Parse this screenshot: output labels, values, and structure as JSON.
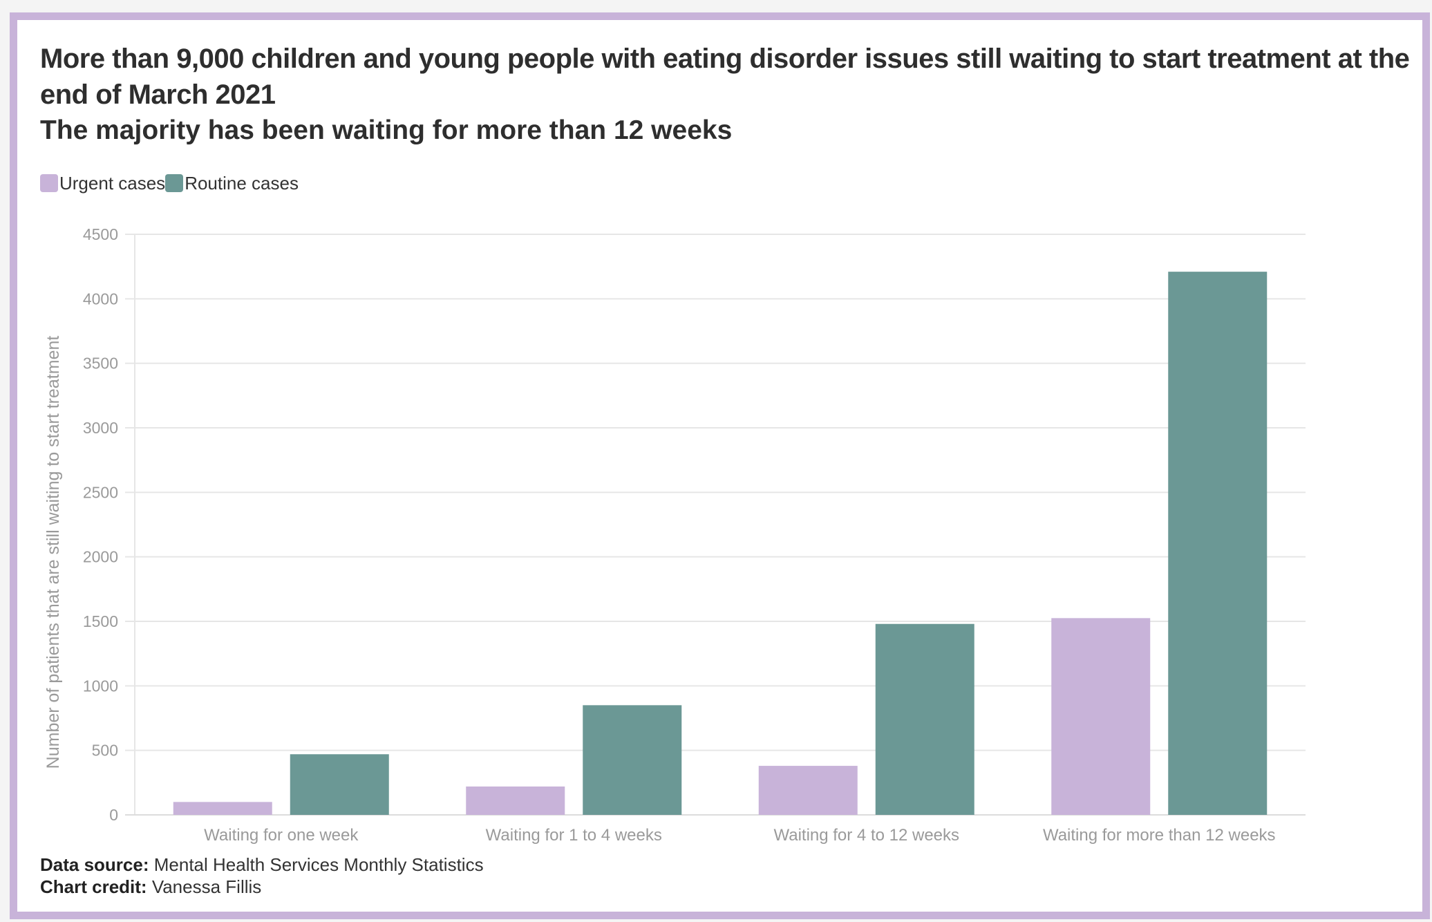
{
  "chart_data": {
    "type": "bar",
    "title": "More than 9,000 children and young people with eating disorder issues still waiting to start treatment at the end of March 2021",
    "subtitle": "The majority has been waiting for more than 12 weeks",
    "ylabel": "Number of patients that are still waiting to start treatment",
    "xlabel": "",
    "categories": [
      "Waiting for one week",
      "Waiting for 1 to 4 weeks",
      "Waiting for 4 to 12 weeks",
      "Waiting for more than 12 weeks"
    ],
    "series": [
      {
        "name": "Urgent cases",
        "values": [
          100,
          220,
          380,
          1525
        ],
        "color": "#c8b3d9"
      },
      {
        "name": "Routine cases",
        "values": [
          470,
          850,
          1480,
          4210
        ],
        "color": "#6b9895"
      }
    ],
    "ylim": [
      0,
      4500
    ],
    "yticks": [
      0,
      500,
      1000,
      1500,
      2000,
      2500,
      3000,
      3500,
      4000,
      4500
    ],
    "grid": true,
    "legend_position": "top-left"
  },
  "footer": {
    "source_label": "Data source:",
    "source_value": "Mental Health Services Monthly Statistics",
    "credit_label": "Chart credit:",
    "credit_value": "Vanessa Fillis"
  },
  "colors": {
    "frame_border": "#c8b3d9",
    "grid": "#e6e6e6",
    "axis_text": "#9a9a9a"
  }
}
